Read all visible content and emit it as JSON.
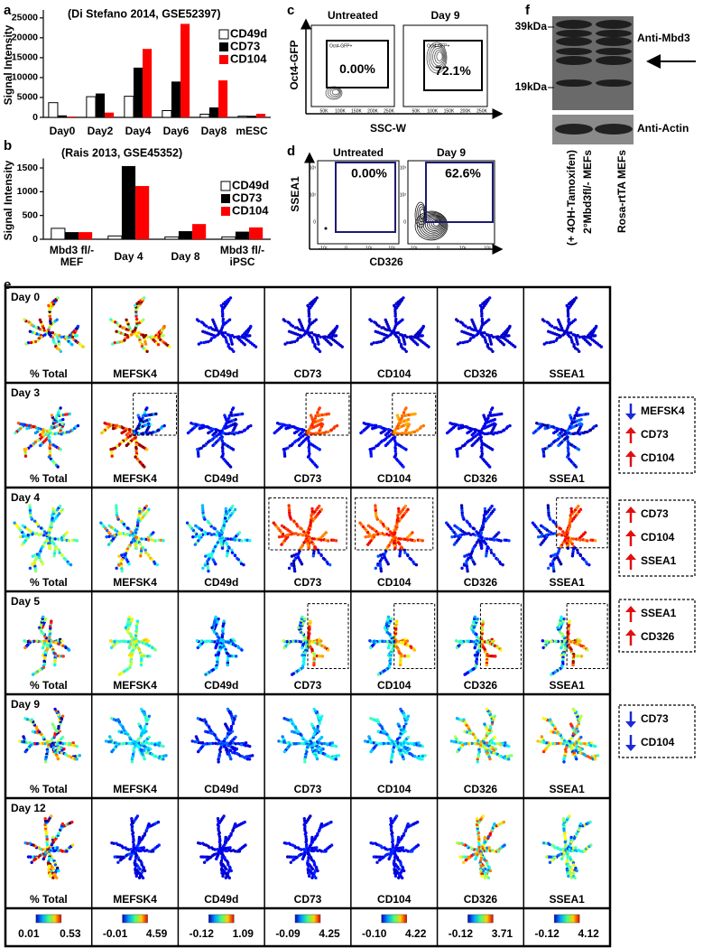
{
  "panel_labels": [
    "a",
    "b",
    "c",
    "d",
    "e",
    "f"
  ],
  "chart_data": [
    {
      "type": "bar",
      "title": "(Di Stefano 2014, GSE52397)",
      "ylabel": "Signal Intensity",
      "categories": [
        "Day0",
        "Day2",
        "Day4",
        "Day6",
        "Day8",
        "mESC"
      ],
      "series": [
        {
          "name": "CD49d",
          "color": "#ffffff",
          "edgecolor": "#000000",
          "values": [
            3700,
            5200,
            5300,
            1700,
            800,
            300
          ]
        },
        {
          "name": "CD73",
          "color": "#000000",
          "values": [
            500,
            6000,
            12500,
            9000,
            2500,
            400
          ]
        },
        {
          "name": "CD104",
          "color": "#ff0000",
          "values": [
            200,
            1200,
            17200,
            23500,
            9300,
            900
          ]
        }
      ],
      "ylim": [
        0,
        27000
      ],
      "yticks": [
        0,
        5000,
        10000,
        15000,
        20000,
        25000
      ]
    },
    {
      "type": "bar",
      "title": "(Rais 2013, GSE45352)",
      "ylabel": "Signal Intensity",
      "categories": [
        "Mbd3 fl/-\nMEF",
        "Day 4",
        "Day 8",
        "Mbd3 fl/-\niPSC"
      ],
      "series": [
        {
          "name": "CD49d",
          "color": "#ffffff",
          "edgecolor": "#000000",
          "values": [
            230,
            70,
            50,
            50
          ]
        },
        {
          "name": "CD73",
          "color": "#000000",
          "values": [
            150,
            1540,
            170,
            160
          ]
        },
        {
          "name": "CD104",
          "color": "#ff0000",
          "values": [
            150,
            1120,
            320,
            250
          ]
        }
      ],
      "ylim": [
        0,
        1700
      ],
      "yticks": [
        0,
        500,
        1000,
        1500
      ]
    }
  ],
  "flow_c": {
    "ylabel": "Oct4-GFP",
    "xlabel": "SSC-W",
    "xticks": [
      "50K",
      "100K",
      "150K",
      "200K",
      "250K"
    ],
    "plots": [
      {
        "title": "Untreated",
        "gate_label": "Oct4-GFP+",
        "percent": "0.00%"
      },
      {
        "title": "Day 9",
        "gate_label": "Oct4-GFP+",
        "percent": "72.1%"
      }
    ]
  },
  "flow_d": {
    "ylabel": "SSEA1",
    "xlabel": "CD326",
    "xticks": [
      "-10²",
      "0",
      "10²",
      "10³"
    ],
    "yticks": [
      "10³",
      "10²",
      "0"
    ],
    "plots": [
      {
        "title": "Untreated",
        "percent": "0.00%"
      },
      {
        "title": "Day 9",
        "percent": "62.6%"
      }
    ]
  },
  "blot_f": {
    "markers": [
      "39kDa",
      "19kDa"
    ],
    "bands": [
      "Anti-Mbd3",
      "Anti-Actin"
    ],
    "lanes": [
      [
        "2°Mbd3fl/- MEFs",
        "(+ 4OH-Tamoxifen)"
      ],
      [
        "Rosa-rtTA MEFs"
      ]
    ]
  },
  "spade_e": {
    "rows": [
      "Day 0",
      "Day 3",
      "Day 4",
      "Day 5",
      "Day 9",
      "Day 12"
    ],
    "columns": [
      "% Total",
      "MEFSK4",
      "CD49d",
      "CD73",
      "CD104",
      "CD326",
      "SSEA1"
    ],
    "scales": [
      {
        "min": "0.01",
        "max": "0.53"
      },
      {
        "min": "-0.01",
        "max": "4.59"
      },
      {
        "min": "-0.12",
        "max": "1.09"
      },
      {
        "min": "-0.09",
        "max": "4.25"
      },
      {
        "min": "-0.10",
        "max": "4.22"
      },
      {
        "min": "-0.12",
        "max": "3.71"
      },
      {
        "min": "-0.12",
        "max": "4.12"
      }
    ],
    "annotations": [
      [
        {
          "direction": "down",
          "label": "MEFSK4"
        },
        {
          "direction": "up",
          "label": "CD73"
        },
        {
          "direction": "up",
          "label": "CD104"
        }
      ],
      [
        {
          "direction": "up",
          "label": "CD73"
        },
        {
          "direction": "up",
          "label": "CD104"
        },
        {
          "direction": "up",
          "label": "SSEA1"
        }
      ],
      [
        {
          "direction": "up",
          "label": "SSEA1"
        },
        {
          "direction": "up",
          "label": "CD326"
        }
      ],
      [
        {
          "direction": "down",
          "label": "CD73"
        },
        {
          "direction": "down",
          "label": "CD104"
        }
      ]
    ]
  }
}
